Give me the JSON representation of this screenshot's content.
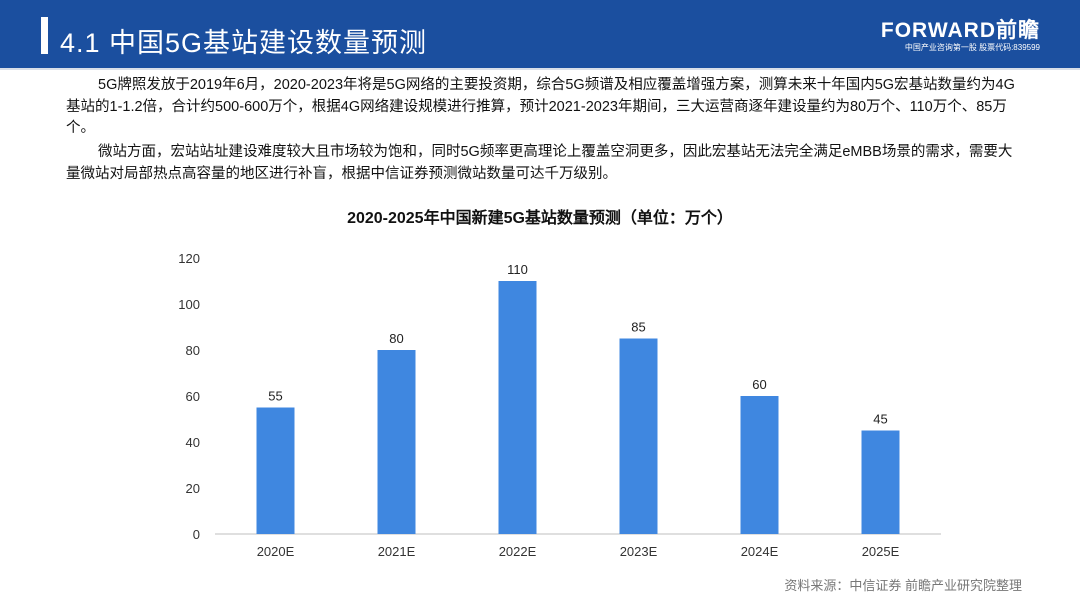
{
  "header": {
    "title": "4.1 中国5G基站建设数量预测",
    "logo": "FORWARD前瞻",
    "logo_tagline": "中国产业咨询第一股 股票代码:839599",
    "color": "#1b4f9f"
  },
  "paragraphs": [
    "5G牌照发放于2019年6月，2020-2023年将是5G网络的主要投资期，综合5G频谱及相应覆盖增强方案，测算未来十年国内5G宏基站数量约为4G基站的1-1.2倍，合计约500-600万个，根据4G网络建设规模进行推算，预计2021-2023年期间，三大运营商逐年建设量约为80万个、110万个、85万个。",
    "微站方面，宏站站址建设难度较大且市场较为饱和，同时5G频率更高理论上覆盖空洞更多，因此宏基站无法完全满足eMBB场景的需求，需要大量微站对局部热点高容量的地区进行补盲，根据中信证券预测微站数量可达千万级别。"
  ],
  "chart_data": {
    "type": "bar",
    "title": "2020-2025年中国新建5G基站数量预测（单位：万个）",
    "categories": [
      "2020E",
      "2021E",
      "2022E",
      "2023E",
      "2024E",
      "2025E"
    ],
    "values": [
      55,
      80,
      110,
      85,
      60,
      45
    ],
    "yticks": [
      0,
      20,
      40,
      60,
      80,
      100,
      120
    ],
    "ylim": [
      0,
      120
    ],
    "grid": false,
    "bar_color": "#3f87e0"
  },
  "source": "资料来源：中信证券 前瞻产业研究院整理"
}
